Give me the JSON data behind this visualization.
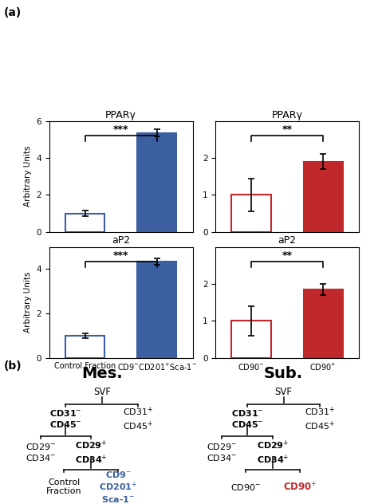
{
  "panel_a": {
    "blue_ppar": {
      "bars": [
        1.0,
        5.35
      ],
      "errors": [
        0.15,
        0.2
      ],
      "ylim": [
        0,
        6
      ],
      "yticks": [
        0,
        2,
        4,
        6
      ],
      "title": "PPARγ",
      "sig": "***"
    },
    "red_ppar": {
      "bars": [
        1.0,
        1.9
      ],
      "errors": [
        0.45,
        0.2
      ],
      "ylim": [
        0,
        3
      ],
      "yticks": [
        0,
        1,
        2
      ],
      "title": "PPARγ",
      "sig": "**"
    },
    "blue_ap2": {
      "bars": [
        1.0,
        4.35
      ],
      "errors": [
        0.1,
        0.15
      ],
      "ylim": [
        0,
        5
      ],
      "yticks": [
        0,
        2,
        4
      ],
      "title": "aP2",
      "sig": "***"
    },
    "red_ap2": {
      "bars": [
        1.0,
        1.85
      ],
      "errors": [
        0.4,
        0.15
      ],
      "ylim": [
        0,
        3
      ],
      "yticks": [
        0,
        1,
        2
      ],
      "title": "aP2",
      "sig": "**"
    },
    "blue_color": "#3b5fa0",
    "red_color": "#c0282b",
    "bar_width": 0.55,
    "xlabel_blue": [
      "Control Fraction",
      "CD9$^{-}$CD201$^{+}$Sca-1$^{-}$"
    ],
    "xlabel_red": [
      "CD90$^{-}$",
      "CD90$^{+}$"
    ],
    "ylabel": "Arbitrary Units"
  },
  "panel_b": {
    "mes_title": "Mes.",
    "sub_title": "Sub.",
    "blue_color": "#3b5fa0",
    "red_color": "#c0282b"
  }
}
